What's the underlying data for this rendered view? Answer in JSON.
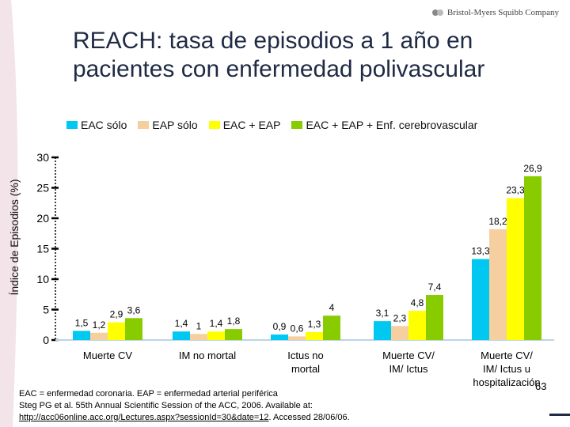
{
  "brand": {
    "name": "Bristol-Myers Squibb Company"
  },
  "title": "REACH: tasa de episodios a 1 año en pacientes con enfermedad polivascular",
  "legend": [
    {
      "label": "EAC sólo",
      "color": "#00c8f0"
    },
    {
      "label": "EAP sólo",
      "color": "#f5cfa0"
    },
    {
      "label": "EAC + EAP",
      "color": "#ffff00"
    },
    {
      "label": "EAC + EAP + Enf. cerebrovascular",
      "color": "#88cc00"
    }
  ],
  "chart_data": {
    "type": "bar",
    "title": "REACH: tasa de episodios a 1 año en pacientes con enfermedad polivascular",
    "xlabel": "",
    "ylabel": "Índice de Episodios (%)",
    "ylim": [
      0,
      30
    ],
    "yticks": [
      "0",
      "5",
      "10",
      "15",
      "20",
      "25",
      "30"
    ],
    "grid": false,
    "legend_position": "top",
    "categories": [
      "Muerte CV",
      "IM no mortal",
      "Ictus no mortal",
      "Muerte CV/ IM/ Ictus",
      "Muerte CV/ IM/ Ictus u hospitalización"
    ],
    "series": [
      {
        "name": "EAC sólo",
        "values": [
          1.5,
          1.4,
          0.9,
          3.1,
          13.3
        ],
        "labels": [
          "1,5",
          "1,4",
          "0,9",
          "3,1",
          "13,3"
        ]
      },
      {
        "name": "EAP sólo",
        "values": [
          1.2,
          1,
          0.6,
          2.3,
          18.2
        ],
        "labels": [
          "1,2",
          "1",
          "0,6",
          "2,3",
          "18,2"
        ]
      },
      {
        "name": "EAC + EAP",
        "values": [
          2.9,
          1.4,
          1.3,
          4.8,
          23.3
        ],
        "labels": [
          "2,9",
          "1,4",
          "1,3",
          "4,8",
          "23,3"
        ]
      },
      {
        "name": "EAC + EAP + Enf. cerebrovascular",
        "values": [
          3.6,
          1.8,
          4,
          7.4,
          26.9
        ],
        "labels": [
          "3,6",
          "1,8",
          "4",
          "7,4",
          "26,9"
        ]
      }
    ]
  },
  "footnote": {
    "line1": "EAC = enfermedad coronaria. EAP = enfermedad arterial periférica",
    "line2": "Steg PG et al. 55th Annual Scientific Session of the ACC, 2006. Available at:",
    "link": "http://acc06online.acc.org/Lectures.aspx?sessionId=30&date=12",
    "accessed": ". Accessed 28/06/06."
  },
  "page_number": "63"
}
